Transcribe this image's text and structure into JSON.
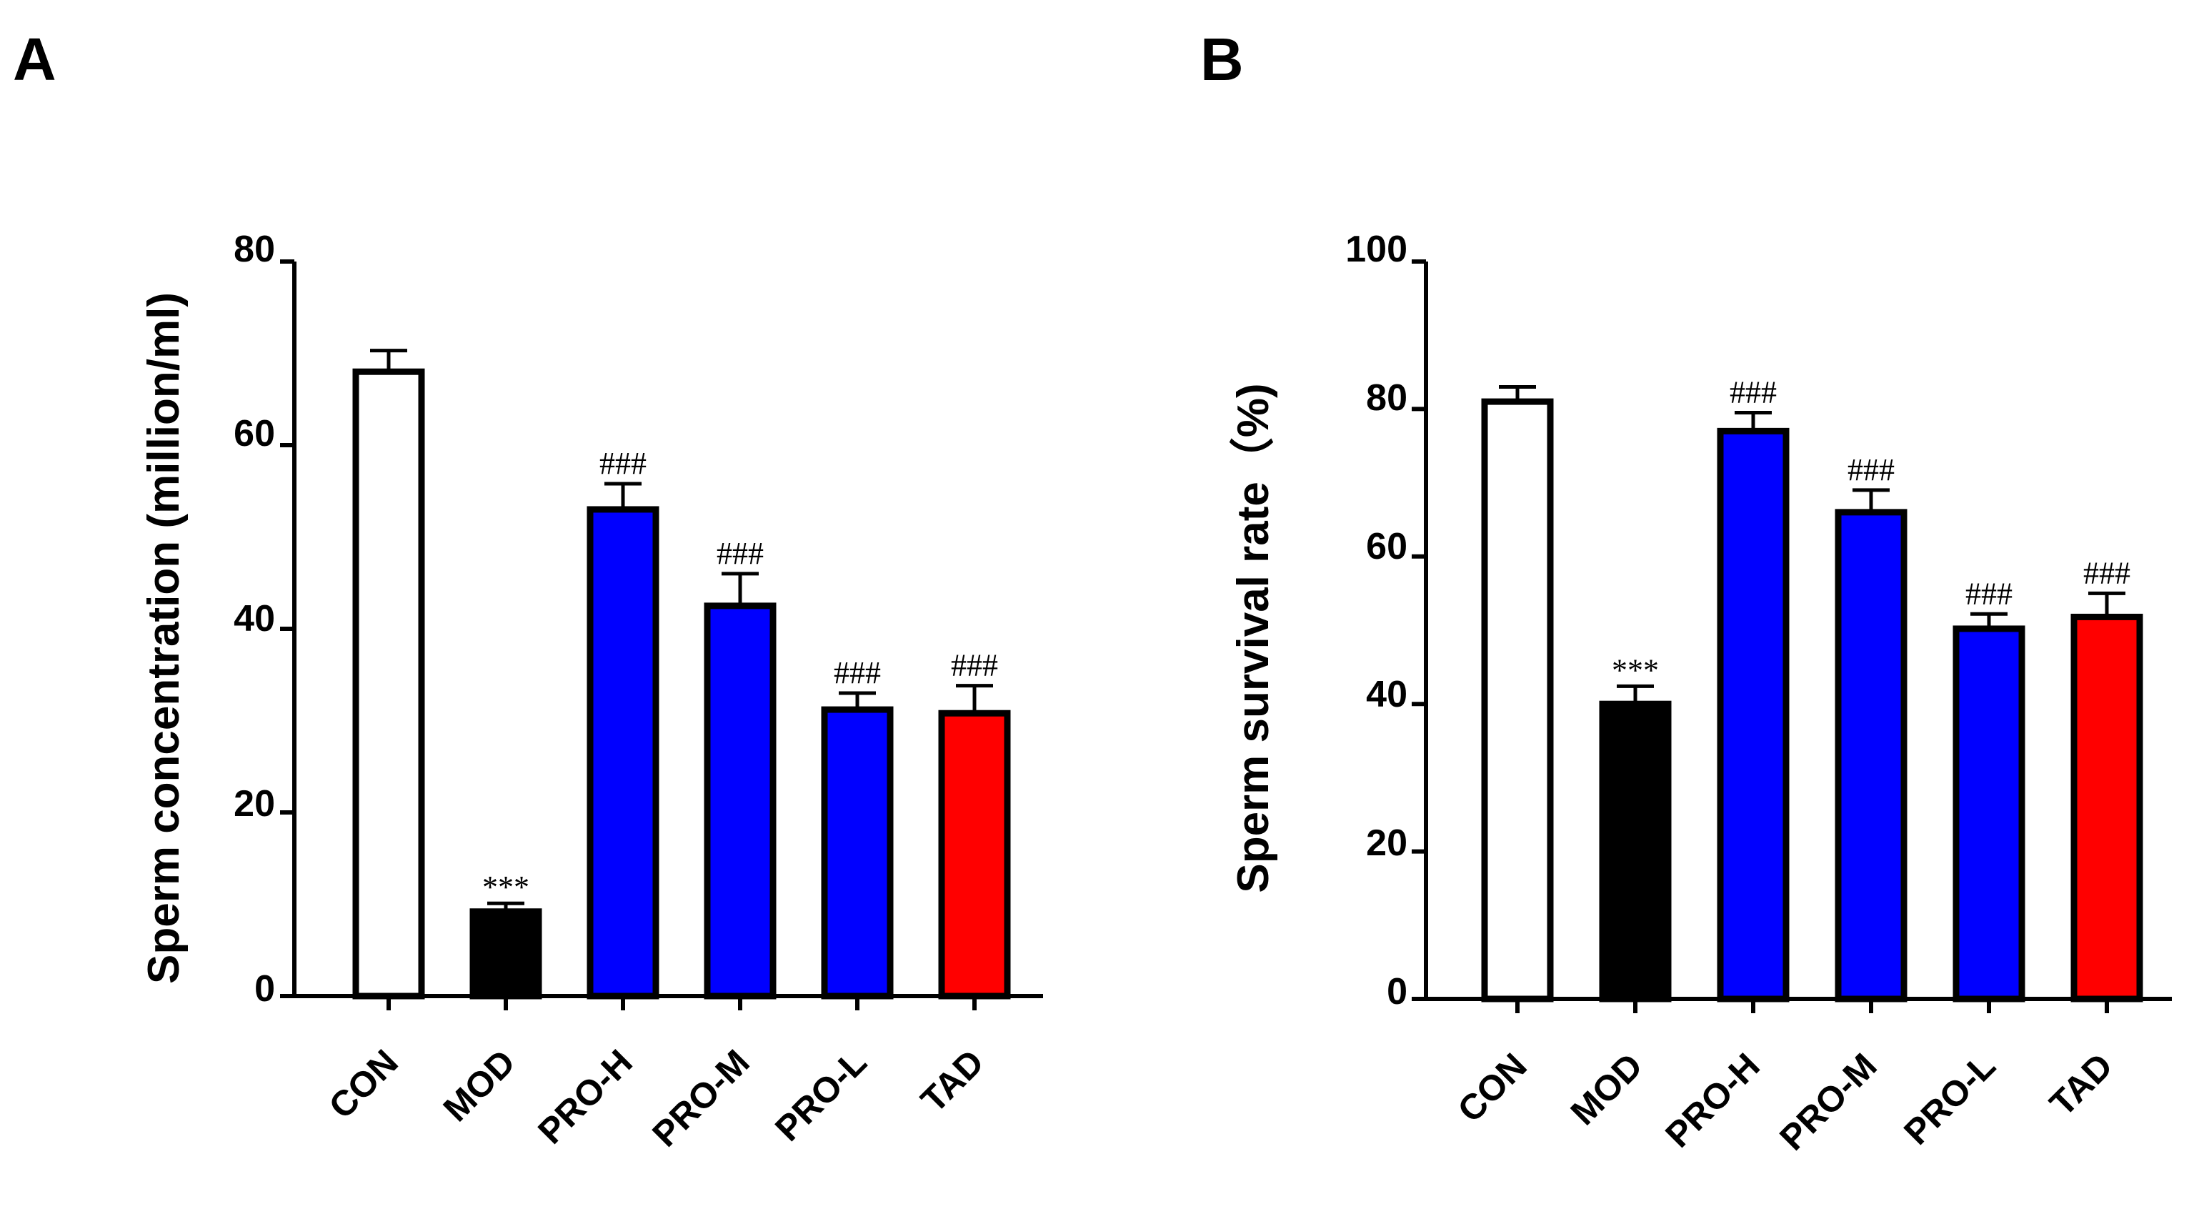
{
  "colors": {
    "CON": "#ffffff",
    "MOD": "#000000",
    "PRO": "#0000ff",
    "TAD": "#ff0000",
    "axis": "#000000"
  },
  "chart_data": [
    {
      "panel": "A",
      "type": "bar",
      "categories": [
        "CON",
        "MOD",
        "PRO-H",
        "PRO-M",
        "PRO-L",
        "TAD"
      ],
      "values": [
        68,
        9.2,
        53,
        42.5,
        31.2,
        30.8
      ],
      "errors": [
        2.3,
        0.9,
        2.8,
        3.5,
        1.8,
        3.0
      ],
      "significance": [
        "",
        "***",
        "###",
        "###",
        "###",
        "###"
      ],
      "bar_colors": [
        "#ffffff",
        "#000000",
        "#0000ff",
        "#0000ff",
        "#0000ff",
        "#ff0000"
      ],
      "ylabel": "Sperm concentration (million/ml)",
      "xlabel": "",
      "ylim": [
        0,
        80
      ],
      "yticks": [
        "0",
        "20",
        "40",
        "60",
        "80"
      ],
      "legend": "none",
      "grid": false
    },
    {
      "panel": "B",
      "type": "bar",
      "categories": [
        "CON",
        "MOD",
        "PRO-H",
        "PRO-M",
        "PRO-L",
        "TAD"
      ],
      "values": [
        81,
        40,
        77,
        66,
        50.2,
        51.8
      ],
      "errors": [
        2.0,
        2.4,
        2.5,
        3.0,
        2.0,
        3.2
      ],
      "significance": [
        "",
        "***",
        "###",
        "###",
        "###",
        "###"
      ],
      "bar_colors": [
        "#ffffff",
        "#000000",
        "#0000ff",
        "#0000ff",
        "#0000ff",
        "#ff0000"
      ],
      "ylabel": "Sperm survival rate（%)",
      "xlabel": "",
      "ylim": [
        0,
        100
      ],
      "yticks": [
        "0",
        "20",
        "40",
        "60",
        "80",
        "100"
      ],
      "legend": "none",
      "grid": false
    }
  ]
}
